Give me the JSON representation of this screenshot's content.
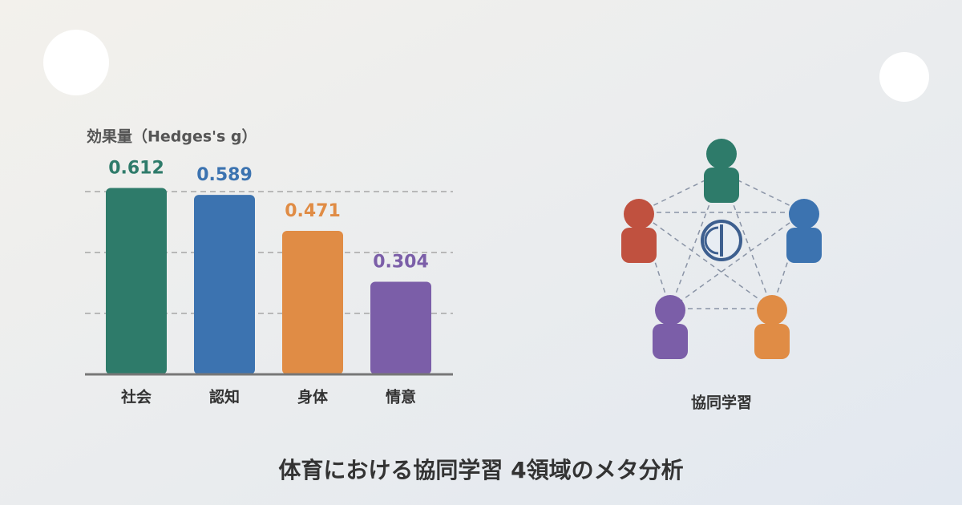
{
  "chart_data": {
    "type": "bar",
    "title": "体育における協同学習 4領域のメタ分析",
    "y_label": "効果量（Hedges's g）",
    "categories": [
      "社会",
      "認知",
      "身体",
      "情意"
    ],
    "values": [
      0.612,
      0.589,
      0.471,
      0.304
    ],
    "colors": [
      "#2e7b6a",
      "#3c73b0",
      "#e08c45",
      "#7b5ea8"
    ],
    "ylim": [
      0,
      0.7
    ],
    "yticks": [
      0.2,
      0.4,
      0.6
    ],
    "grid": true
  },
  "illustration": {
    "label": "協同学習"
  }
}
